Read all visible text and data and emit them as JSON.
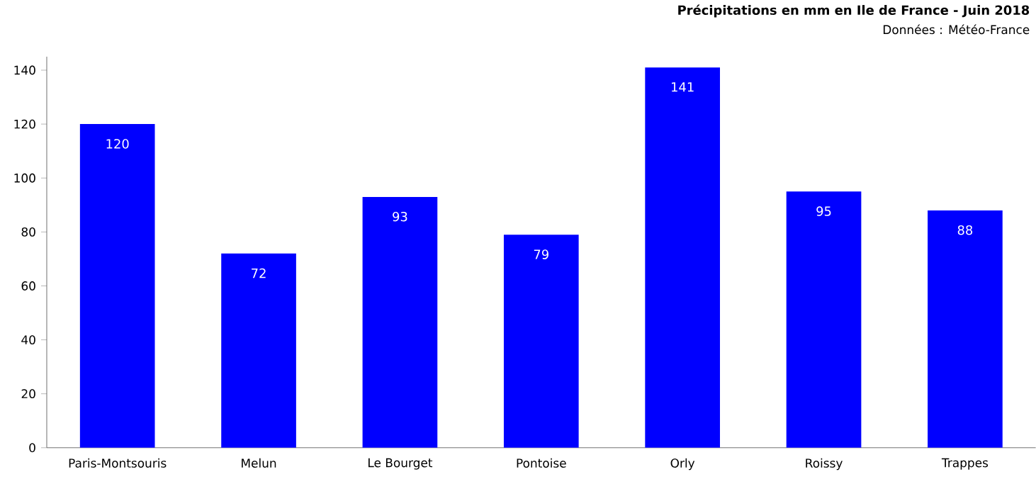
{
  "chart_data": {
    "type": "bar",
    "title": "Précipitations en mm en Ile de France - Juin 2018",
    "subtitle": "Données : Météo-France",
    "categories": [
      "Paris-Montsouris",
      "Melun",
      "Le Bourget",
      "Pontoise",
      "Orly",
      "Roissy",
      "Trappes"
    ],
    "values": [
      120,
      72,
      93,
      79,
      141,
      95,
      88
    ],
    "color": "#0000ff",
    "ylim": [
      0,
      145
    ],
    "yticks": [
      0,
      20,
      40,
      60,
      80,
      100,
      120,
      140
    ],
    "data_labels": true,
    "grid": false
  }
}
